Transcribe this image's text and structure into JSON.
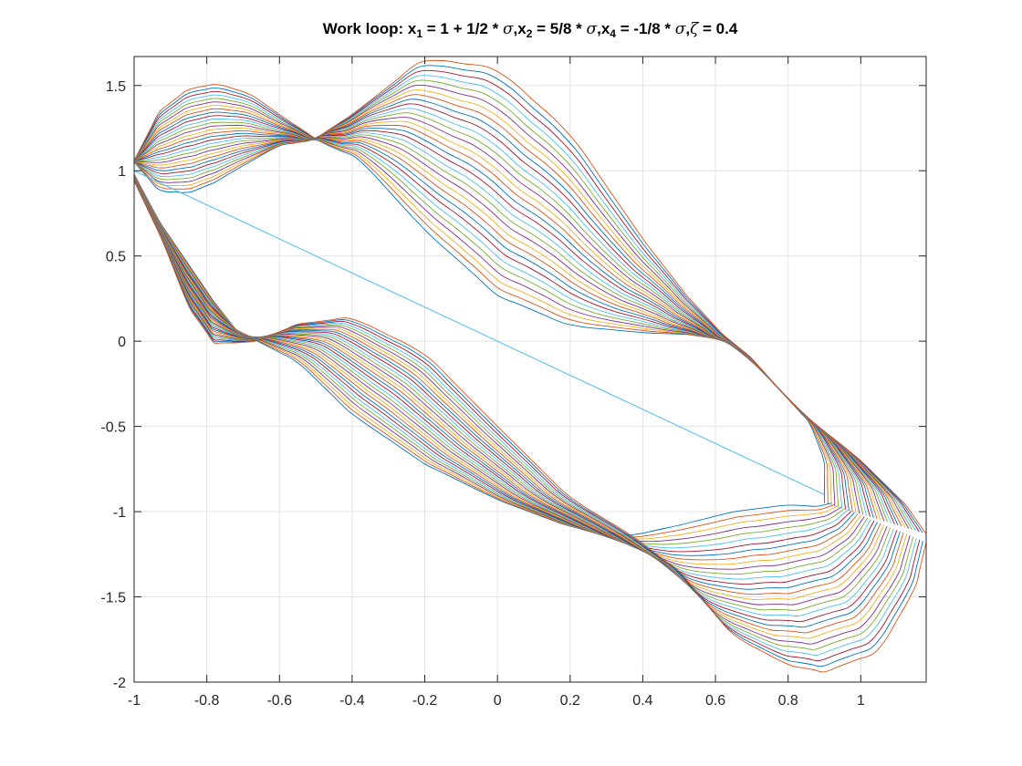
{
  "chart_data": {
    "type": "line",
    "title_parts": [
      {
        "text": "Work loop: x",
        "kind": "text"
      },
      {
        "text": "1",
        "kind": "sub"
      },
      {
        "text": " = 1 + 1/2 * ",
        "kind": "text"
      },
      {
        "text": "σ",
        "kind": "greek"
      },
      {
        "text": ",x",
        "kind": "text"
      },
      {
        "text": "2",
        "kind": "sub"
      },
      {
        "text": " = 5/8 * ",
        "kind": "text"
      },
      {
        "text": "σ",
        "kind": "greek"
      },
      {
        "text": ",x",
        "kind": "text"
      },
      {
        "text": "4",
        "kind": "sub"
      },
      {
        "text": " = -1/8 * ",
        "kind": "text"
      },
      {
        "text": "σ",
        "kind": "greek"
      },
      {
        "text": ",",
        "kind": "text"
      },
      {
        "text": "ζ",
        "kind": "greek"
      },
      {
        "text": " = 0.4",
        "kind": "text"
      }
    ],
    "xlim": [
      -1,
      1.18
    ],
    "ylim": [
      -2,
      1.67
    ],
    "xticks": [
      -1,
      -0.8,
      -0.6,
      -0.4,
      -0.2,
      0,
      0.2,
      0.4,
      0.6,
      0.8,
      1
    ],
    "xtick_labels": [
      "-1",
      "-0.8",
      "-0.6",
      "-0.4",
      "-0.2",
      "0",
      "0.2",
      "0.4",
      "0.6",
      "0.8",
      "1"
    ],
    "yticks": [
      1.5,
      1,
      0.5,
      0,
      -0.5,
      -1,
      -1.5,
      -2
    ],
    "ytick_labels": [
      "1.5",
      "1",
      "0.5",
      "0",
      "-0.5",
      "-1",
      "-1.5",
      "-2"
    ],
    "grid": true,
    "family": {
      "count": 30,
      "colors": [
        "#0072bd",
        "#d95319",
        "#edb120",
        "#7e2f8e",
        "#77ac30",
        "#4dbeee",
        "#a2142f"
      ],
      "upper_inner": [
        [
          -1,
          1.05
        ],
        [
          -0.93,
          0.88
        ],
        [
          -0.85,
          0.87
        ],
        [
          -0.78,
          0.93
        ],
        [
          -0.7,
          1.03
        ],
        [
          -0.6,
          1.15
        ],
        [
          -0.5,
          1.18
        ],
        [
          -0.38,
          1.07
        ],
        [
          -0.2,
          0.65
        ],
        [
          0,
          0.27
        ],
        [
          0.2,
          0.09
        ],
        [
          0.4,
          0.05
        ],
        [
          0.52,
          0.04
        ],
        [
          0.62,
          0.01
        ],
        [
          0.7,
          -0.11
        ],
        [
          0.8,
          -0.34
        ],
        [
          0.86,
          -0.48
        ],
        [
          0.9,
          -0.7
        ],
        [
          0.9,
          -0.95
        ]
      ],
      "upper_outer": [
        [
          -1,
          1.06
        ],
        [
          -0.93,
          1.35
        ],
        [
          -0.85,
          1.48
        ],
        [
          -0.77,
          1.51
        ],
        [
          -0.68,
          1.45
        ],
        [
          -0.58,
          1.3
        ],
        [
          -0.5,
          1.19
        ],
        [
          -0.4,
          1.33
        ],
        [
          -0.2,
          1.66
        ],
        [
          0,
          1.6
        ],
        [
          0.2,
          1.22
        ],
        [
          0.4,
          0.6
        ],
        [
          0.52,
          0.27
        ],
        [
          0.62,
          0.04
        ],
        [
          0.7,
          -0.1
        ],
        [
          0.8,
          -0.34
        ],
        [
          0.87,
          -0.48
        ],
        [
          0.99,
          -0.68
        ],
        [
          1.12,
          -0.95
        ],
        [
          1.18,
          -1.13
        ]
      ],
      "lower_inner": [
        [
          -1,
          0.98
        ],
        [
          -0.93,
          0.7
        ],
        [
          -0.85,
          0.45
        ],
        [
          -0.78,
          0.23
        ],
        [
          -0.72,
          0.07
        ],
        [
          -0.66,
          0.0
        ],
        [
          -0.55,
          -0.12
        ],
        [
          -0.4,
          -0.43
        ],
        [
          -0.2,
          -0.72
        ],
        [
          0.0,
          -0.93
        ],
        [
          0.2,
          -1.09
        ],
        [
          0.37,
          -1.14
        ],
        [
          0.5,
          -1.08
        ],
        [
          0.65,
          -1.0
        ],
        [
          0.8,
          -0.96
        ],
        [
          0.88,
          -0.97
        ],
        [
          0.92,
          -0.95
        ]
      ],
      "lower_outer": [
        [
          -1,
          0.94
        ],
        [
          -0.92,
          0.58
        ],
        [
          -0.85,
          0.2
        ],
        [
          -0.78,
          -0.01
        ],
        [
          -0.72,
          -0.01
        ],
        [
          -0.66,
          0.0
        ],
        [
          -0.55,
          0.1
        ],
        [
          -0.4,
          0.14
        ],
        [
          -0.2,
          -0.07
        ],
        [
          0.0,
          -0.5
        ],
        [
          0.2,
          -0.92
        ],
        [
          0.37,
          -1.14
        ],
        [
          0.5,
          -1.35
        ],
        [
          0.65,
          -1.73
        ],
        [
          0.8,
          -1.9
        ],
        [
          0.9,
          -1.94
        ],
        [
          1.05,
          -1.82
        ],
        [
          1.15,
          -1.45
        ],
        [
          1.18,
          -1.18
        ]
      ]
    },
    "straight_line": {
      "color": "#4dbeee",
      "points": [
        [
          -1,
          1.0
        ],
        [
          0.9,
          -0.9
        ]
      ]
    }
  }
}
